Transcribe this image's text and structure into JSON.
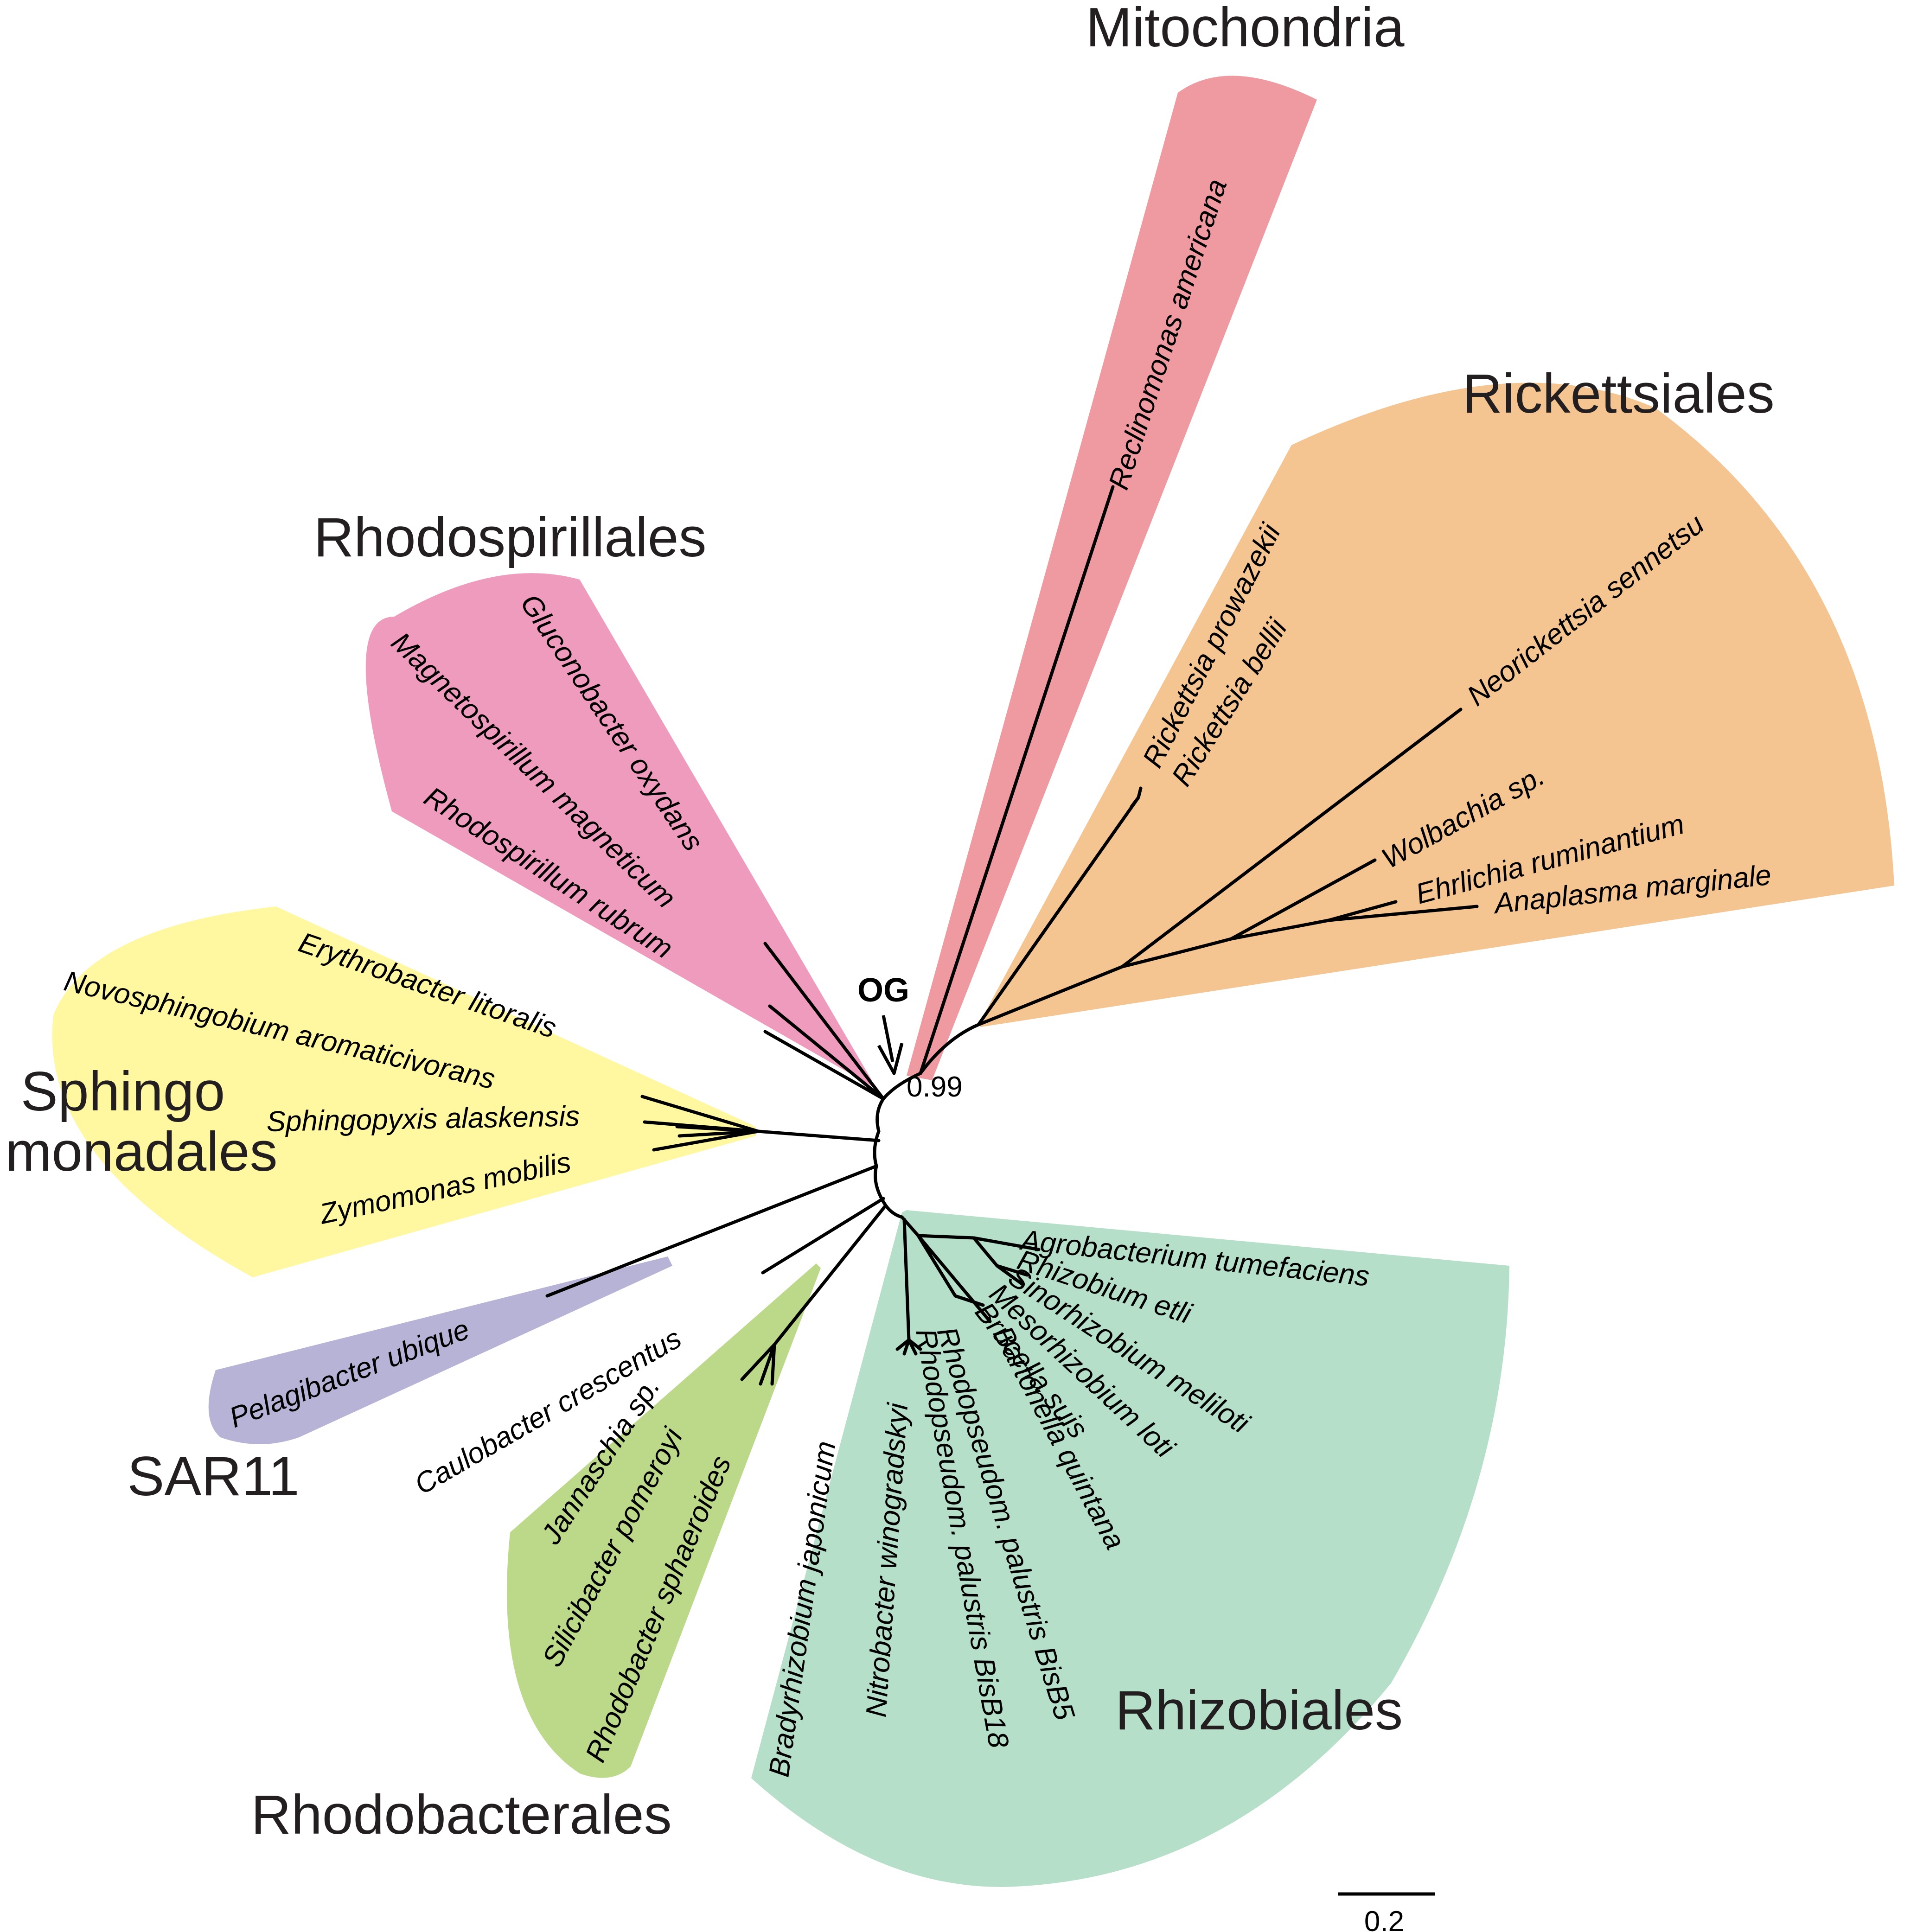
{
  "clades": {
    "mitochondria": {
      "name": "Mitochondria",
      "color": "#ef9aa0"
    },
    "rickettsiales": {
      "name": "Rickettsiales",
      "color": "#f4c491"
    },
    "rhodospirillales": {
      "name": "Rhodospirillales",
      "color": "#ef9bbd"
    },
    "sphingomonadales": {
      "name_line1": "Sphingo",
      "name_line2": "monadales",
      "color": "#fff8a0"
    },
    "sar11": {
      "name": "SAR11",
      "color": "#b7b3d6"
    },
    "rhodobacterales": {
      "name": "Rhodobacterales",
      "color": "#bcd98a"
    },
    "rhizobiales": {
      "name": "Rhizobiales",
      "color": "#b6dfca"
    }
  },
  "taxa": {
    "reclinomonas": "Reclinomonas americana",
    "r_prowazekii": "Rickettsia prowazekii",
    "r_bellii": "Rickettsia bellii",
    "neorickettsia": "Neorickettsia sennetsu",
    "wolbachia": "Wolbachia sp.",
    "ehrlichia": "Ehrlichia ruminantium",
    "anaplasma": "Anaplasma marginale",
    "gluconobacter": "Gluconobacter oxydans",
    "magnetospirillum": "Magnetospirillum magneticum",
    "rhodospirillum": "Rhodospirillum rubrum",
    "erythrobacter": "Erythrobacter litoralis",
    "novosphingobium": "Novosphingobium aromaticivorans",
    "sphingopyxis": "Sphingopyxis alaskensis",
    "zymomonas": "Zymomonas mobilis",
    "pelagibacter": "Pelagibacter ubique",
    "caulobacter": "Caulobacter crescentus",
    "jannaschia": "Jannaschia sp.",
    "silicibacter": "Silicibacter pomeroyi",
    "rhodobacter": "Rhodobacter sphaeroides",
    "bradyrhizobium": "Bradyrhizobium japonicum",
    "nitrobacter": "Nitrobacter winogradskyi",
    "rhodopseudo_bisb18": "Rhodopseudom. palustris BisB18",
    "rhodopseudo_bisb5": "Rhodopseudom. palustris BisB5",
    "agrobacterium": "Agrobacterium tumefaciens",
    "rhizobium": "Rhizobium etli",
    "sinorhizobium": "Sinorhizobium meliloti",
    "mesorhizobium": "Mesorhizobium loti",
    "brucella": "Brucella suis",
    "bartonella": "Bartonella quintana"
  },
  "annotations": {
    "outgroup": "OG",
    "root_support": "0.99",
    "scale_bar": "0.2"
  }
}
